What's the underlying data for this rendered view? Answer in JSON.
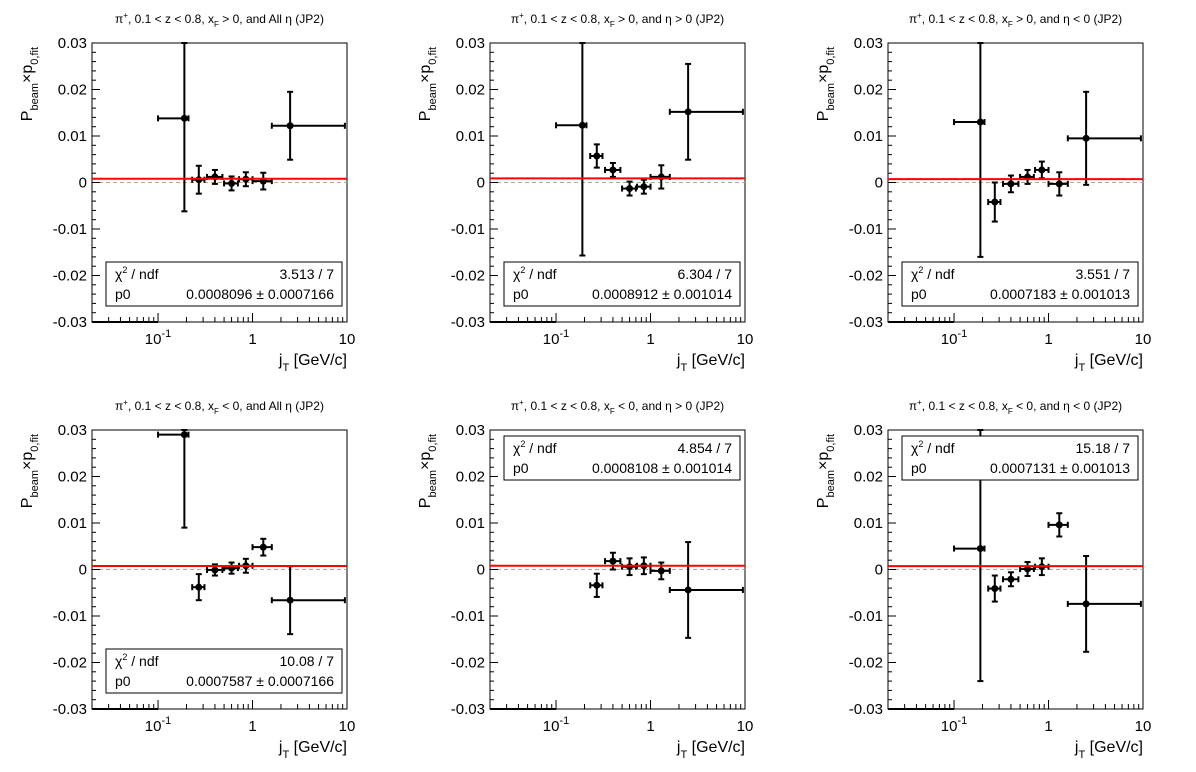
{
  "common": {
    "ylabel_main": "P",
    "ylabel_sub1": "beam",
    "ylabel_times": "×p",
    "ylabel_sub2": "0,fit",
    "xlabel_main": "j",
    "xlabel_sub": "T",
    "xlabel_unit": " [GeV/c]",
    "ylim": [
      -0.03,
      0.03
    ],
    "xlim": [
      0.02,
      10
    ],
    "x_scale": "log",
    "yticks": [
      "-0.03",
      "-0.02",
      "-0.01",
      "0",
      "0.01",
      "0.02",
      "0.03"
    ],
    "ytick_values": [
      -0.03,
      -0.02,
      -0.01,
      0,
      0.01,
      0.02,
      0.03
    ],
    "xtick_values": [
      0.1,
      1,
      10
    ],
    "xtick_labels": [
      {
        "base": "10",
        "exp": "-1"
      },
      {
        "base": "1",
        "exp": ""
      },
      {
        "base": "10",
        "exp": ""
      }
    ],
    "fit_color": "#ff0000",
    "zero_line_color": "#aaaaaa",
    "marker_color": "#000000"
  },
  "chart_data": [
    {
      "type": "scatter",
      "title_parts": {
        "pre": "π",
        "sup1": "+",
        "mid": ", 0.1 < z < 0.8, x",
        "sub": "F",
        "post": " > 0, and All η (JP2)"
      },
      "fit_p0": 0.0008096,
      "stats": {
        "chi2_label": "χ",
        "chi2_sup": "2",
        "ndf_label": " / ndf",
        "chi2_value": "3.513 / 7",
        "p0_label": "p0",
        "p0_value": "0.0008096 ± 0.0007166"
      },
      "stats_position": "bottom",
      "points": [
        {
          "x": 0.05,
          "xlo": 0.02,
          "xhi": 0.1,
          "y": -0.03,
          "ey": 0
        },
        {
          "x": 0.19,
          "xlo": 0.1,
          "xhi": 0.21,
          "y": 0.0138,
          "ey": 0.02
        },
        {
          "x": 0.27,
          "xlo": 0.23,
          "xhi": 0.31,
          "y": 0.0006,
          "ey": 0.003
        },
        {
          "x": 0.4,
          "xlo": 0.33,
          "xhi": 0.48,
          "y": 0.0012,
          "ey": 0.0015
        },
        {
          "x": 0.6,
          "xlo": 0.5,
          "xhi": 0.7,
          "y": -0.0002,
          "ey": 0.0015
        },
        {
          "x": 0.85,
          "xlo": 0.72,
          "xhi": 1.0,
          "y": 0.0007,
          "ey": 0.0015
        },
        {
          "x": 1.3,
          "xlo": 1.0,
          "xhi": 1.6,
          "y": 0.0003,
          "ey": 0.0018
        },
        {
          "x": 2.5,
          "xlo": 1.6,
          "xhi": 9.5,
          "y": 0.0122,
          "ey": 0.0073
        }
      ]
    },
    {
      "type": "scatter",
      "title_parts": {
        "pre": "π",
        "sup1": "+",
        "mid": ", 0.1 < z < 0.8, x",
        "sub": "F",
        "post": " > 0, and η > 0 (JP2)"
      },
      "fit_p0": 0.0008912,
      "stats": {
        "chi2_label": "χ",
        "chi2_sup": "2",
        "ndf_label": " / ndf",
        "chi2_value": "6.304 / 7",
        "p0_label": "p0",
        "p0_value": "0.0008912 ± 0.001014"
      },
      "stats_position": "bottom",
      "points": [
        {
          "x": 0.05,
          "xlo": 0.02,
          "xhi": 0.1,
          "y": -0.03,
          "ey": 0
        },
        {
          "x": 0.19,
          "xlo": 0.1,
          "xhi": 0.21,
          "y": 0.0123,
          "ey": 0.028
        },
        {
          "x": 0.27,
          "xlo": 0.23,
          "xhi": 0.31,
          "y": 0.0057,
          "ey": 0.0025
        },
        {
          "x": 0.4,
          "xlo": 0.33,
          "xhi": 0.48,
          "y": 0.0027,
          "ey": 0.0015
        },
        {
          "x": 0.6,
          "xlo": 0.5,
          "xhi": 0.7,
          "y": -0.0013,
          "ey": 0.0015
        },
        {
          "x": 0.85,
          "xlo": 0.72,
          "xhi": 1.0,
          "y": -0.0009,
          "ey": 0.0015
        },
        {
          "x": 1.3,
          "xlo": 1.0,
          "xhi": 1.6,
          "y": 0.0012,
          "ey": 0.0025
        },
        {
          "x": 2.5,
          "xlo": 1.6,
          "xhi": 9.5,
          "y": 0.0152,
          "ey": 0.0103
        }
      ]
    },
    {
      "type": "scatter",
      "title_parts": {
        "pre": "π",
        "sup1": "+",
        "mid": ", 0.1 < z < 0.8, x",
        "sub": "F",
        "post": " > 0, and η < 0 (JP2)"
      },
      "fit_p0": 0.0007183,
      "stats": {
        "chi2_label": "χ",
        "chi2_sup": "2",
        "ndf_label": " / ndf",
        "chi2_value": "3.551 / 7",
        "p0_label": "p0",
        "p0_value": "0.0007183 ± 0.001013"
      },
      "stats_position": "bottom",
      "points": [
        {
          "x": 0.05,
          "xlo": 0.02,
          "xhi": 0.1,
          "y": -0.03,
          "ey": 0
        },
        {
          "x": 0.19,
          "xlo": 0.1,
          "xhi": 0.21,
          "y": 0.013,
          "ey": 0.029
        },
        {
          "x": 0.27,
          "xlo": 0.23,
          "xhi": 0.31,
          "y": -0.0042,
          "ey": 0.0042
        },
        {
          "x": 0.4,
          "xlo": 0.33,
          "xhi": 0.48,
          "y": -0.0003,
          "ey": 0.0018
        },
        {
          "x": 0.6,
          "xlo": 0.5,
          "xhi": 0.7,
          "y": 0.0012,
          "ey": 0.0015
        },
        {
          "x": 0.85,
          "xlo": 0.72,
          "xhi": 1.0,
          "y": 0.0027,
          "ey": 0.0018
        },
        {
          "x": 1.3,
          "xlo": 1.0,
          "xhi": 1.6,
          "y": -0.0003,
          "ey": 0.0025
        },
        {
          "x": 2.5,
          "xlo": 1.6,
          "xhi": 9.5,
          "y": 0.0095,
          "ey": 0.01
        }
      ]
    },
    {
      "type": "scatter",
      "title_parts": {
        "pre": "π",
        "sup1": "+",
        "mid": ", 0.1 < z < 0.8, x",
        "sub": "F",
        "post": " < 0, and All η (JP2)"
      },
      "fit_p0": 0.0007587,
      "stats": {
        "chi2_label": "χ",
        "chi2_sup": "2",
        "ndf_label": " / ndf",
        "chi2_value": "10.08 / 7",
        "p0_label": "p0",
        "p0_value": "0.0007587 ± 0.0007166"
      },
      "stats_position": "bottom",
      "points": [
        {
          "x": 0.05,
          "xlo": 0.02,
          "xhi": 0.1,
          "y": -0.03,
          "ey": 0
        },
        {
          "x": 0.19,
          "xlo": 0.1,
          "xhi": 0.21,
          "y": 0.029,
          "ey": 0.02
        },
        {
          "x": 0.27,
          "xlo": 0.23,
          "xhi": 0.31,
          "y": -0.0038,
          "ey": 0.0028
        },
        {
          "x": 0.4,
          "xlo": 0.33,
          "xhi": 0.48,
          "y": -0.0001,
          "ey": 0.0012
        },
        {
          "x": 0.6,
          "xlo": 0.5,
          "xhi": 0.7,
          "y": 0.0003,
          "ey": 0.0012
        },
        {
          "x": 0.85,
          "xlo": 0.72,
          "xhi": 1.0,
          "y": 0.0008,
          "ey": 0.0015
        },
        {
          "x": 1.3,
          "xlo": 1.0,
          "xhi": 1.6,
          "y": 0.0048,
          "ey": 0.0018
        },
        {
          "x": 2.5,
          "xlo": 1.6,
          "xhi": 9.5,
          "y": -0.0066,
          "ey": 0.0073
        }
      ]
    },
    {
      "type": "scatter",
      "title_parts": {
        "pre": "π",
        "sup1": "+",
        "mid": ", 0.1 < z < 0.8, x",
        "sub": "F",
        "post": " < 0, and η > 0 (JP2)"
      },
      "fit_p0": 0.0008108,
      "stats": {
        "chi2_label": "χ",
        "chi2_sup": "2",
        "ndf_label": " / ndf",
        "chi2_value": "4.854 / 7",
        "p0_label": "p0",
        "p0_value": "0.0008108 ± 0.001014"
      },
      "stats_position": "top",
      "points": [
        {
          "x": 0.05,
          "xlo": 0.02,
          "xhi": 0.1,
          "y": -0.03,
          "ey": 0
        },
        {
          "x": 0.27,
          "xlo": 0.23,
          "xhi": 0.31,
          "y": -0.0034,
          "ey": 0.0025
        },
        {
          "x": 0.4,
          "xlo": 0.33,
          "xhi": 0.48,
          "y": 0.0018,
          "ey": 0.0018
        },
        {
          "x": 0.6,
          "xlo": 0.5,
          "xhi": 0.7,
          "y": 0.0006,
          "ey": 0.0018
        },
        {
          "x": 0.85,
          "xlo": 0.72,
          "xhi": 1.0,
          "y": 0.0008,
          "ey": 0.0018
        },
        {
          "x": 1.3,
          "xlo": 1.0,
          "xhi": 1.6,
          "y": -0.0003,
          "ey": 0.0018
        },
        {
          "x": 2.5,
          "xlo": 1.6,
          "xhi": 9.5,
          "y": -0.0044,
          "ey": 0.0103
        }
      ]
    },
    {
      "type": "scatter",
      "title_parts": {
        "pre": "π",
        "sup1": "+",
        "mid": ", 0.1 < z < 0.8, x",
        "sub": "F",
        "post": " < 0, and η < 0 (JP2)"
      },
      "fit_p0": 0.0007131,
      "stats": {
        "chi2_label": "χ",
        "chi2_sup": "2",
        "ndf_label": " / ndf",
        "chi2_value": "15.18 / 7",
        "p0_label": "p0",
        "p0_value": "0.0007131 ± 0.001013"
      },
      "stats_position": "top",
      "points": [
        {
          "x": 0.05,
          "xlo": 0.02,
          "xhi": 0.1,
          "y": -0.03,
          "ey": 0
        },
        {
          "x": 0.19,
          "xlo": 0.1,
          "xhi": 0.21,
          "y": 0.0045,
          "ey": 0.0285
        },
        {
          "x": 0.27,
          "xlo": 0.23,
          "xhi": 0.31,
          "y": -0.0041,
          "ey": 0.0028
        },
        {
          "x": 0.4,
          "xlo": 0.33,
          "xhi": 0.48,
          "y": -0.0021,
          "ey": 0.0015
        },
        {
          "x": 0.6,
          "xlo": 0.5,
          "xhi": 0.7,
          "y": 0.0001,
          "ey": 0.0015
        },
        {
          "x": 0.85,
          "xlo": 0.72,
          "xhi": 1.0,
          "y": 0.0006,
          "ey": 0.0018
        },
        {
          "x": 1.3,
          "xlo": 1.0,
          "xhi": 1.6,
          "y": 0.0096,
          "ey": 0.0025
        },
        {
          "x": 2.5,
          "xlo": 1.6,
          "xhi": 9.5,
          "y": -0.0074,
          "ey": 0.0103
        }
      ]
    }
  ]
}
